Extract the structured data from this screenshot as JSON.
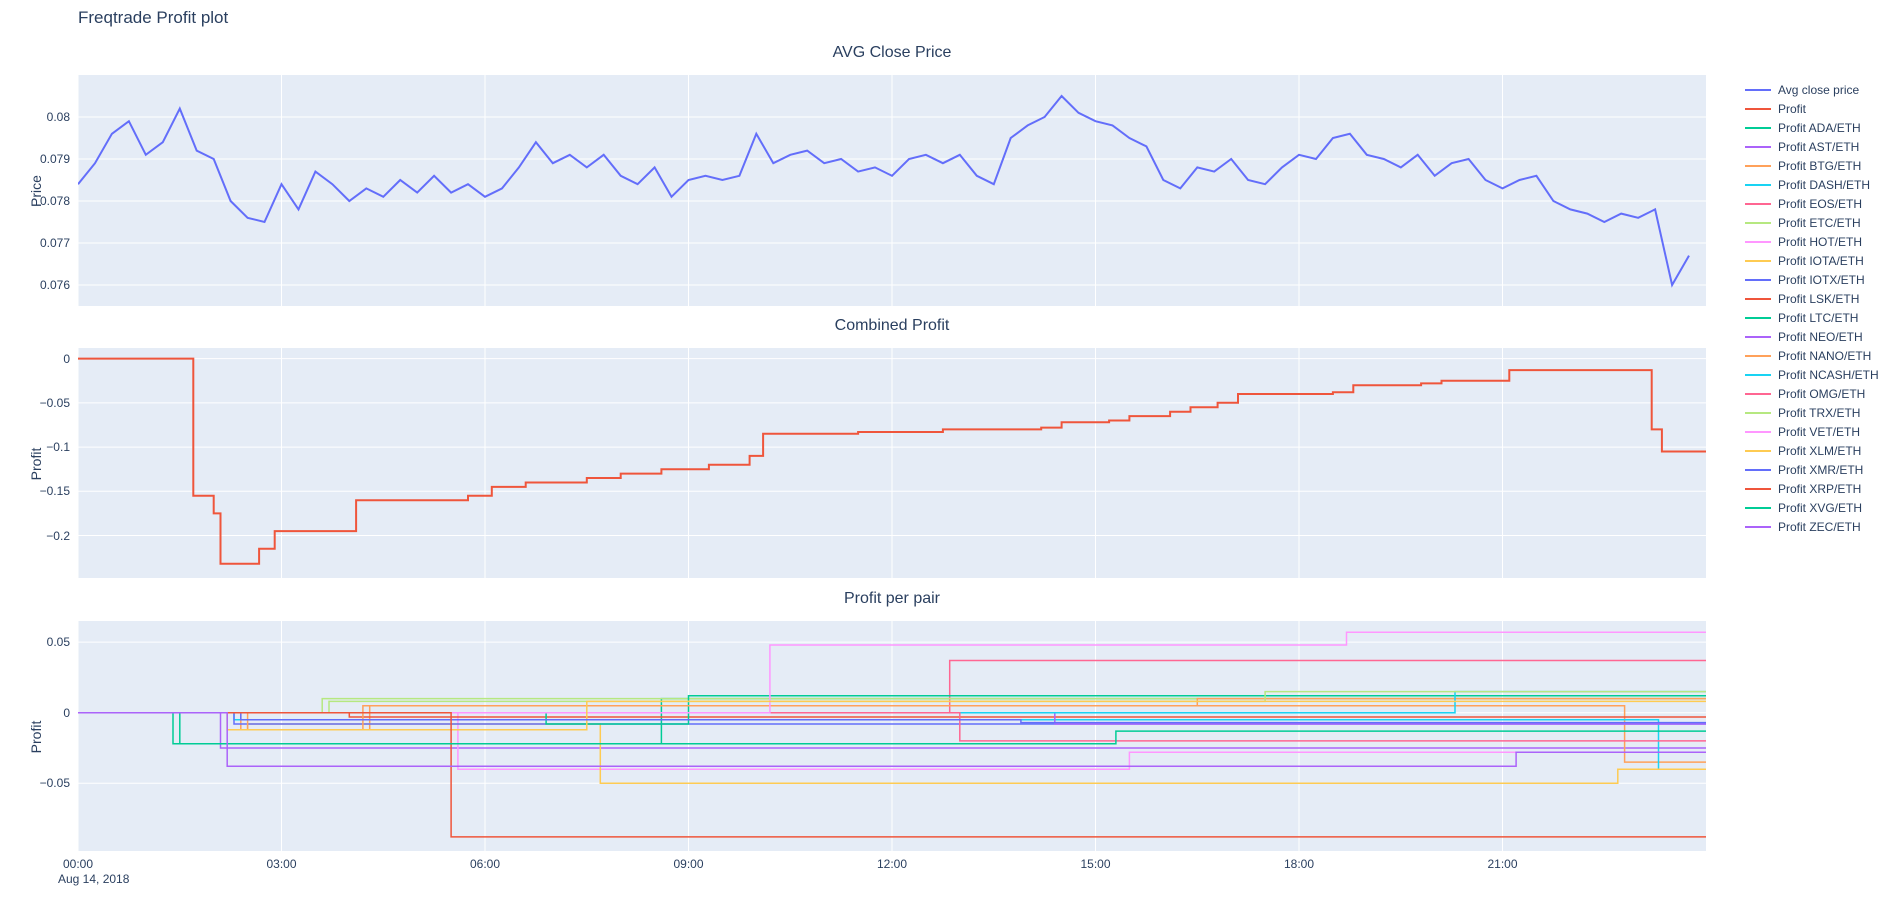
{
  "page": {
    "title": "Freqtrade Profit plot"
  },
  "x_axis": {
    "tick_hours": [
      0,
      3,
      6,
      9,
      12,
      15,
      18,
      21
    ],
    "tick_labels": [
      "00:00",
      "03:00",
      "06:00",
      "09:00",
      "12:00",
      "15:00",
      "18:00",
      "21:00"
    ],
    "date_label": "Aug 14, 2018"
  },
  "colors": {
    "plot_background": "#E5ECF6",
    "grid": "#ffffff",
    "text": "#2a3f5f"
  },
  "legend": {
    "items": [
      {
        "label": "Avg close price",
        "color": "#636efa"
      },
      {
        "label": "Profit",
        "color": "#EF553B"
      },
      {
        "label": "Profit ADA/ETH",
        "color": "#00cc96"
      },
      {
        "label": "Profit AST/ETH",
        "color": "#ab63fa"
      },
      {
        "label": "Profit BTG/ETH",
        "color": "#FFA15A"
      },
      {
        "label": "Profit DASH/ETH",
        "color": "#19d3f3"
      },
      {
        "label": "Profit EOS/ETH",
        "color": "#FF6692"
      },
      {
        "label": "Profit ETC/ETH",
        "color": "#B6E880"
      },
      {
        "label": "Profit HOT/ETH",
        "color": "#FF97FF"
      },
      {
        "label": "Profit IOTA/ETH",
        "color": "#FECB52"
      },
      {
        "label": "Profit IOTX/ETH",
        "color": "#636efa"
      },
      {
        "label": "Profit LSK/ETH",
        "color": "#EF553B"
      },
      {
        "label": "Profit LTC/ETH",
        "color": "#00cc96"
      },
      {
        "label": "Profit NEO/ETH",
        "color": "#ab63fa"
      },
      {
        "label": "Profit NANO/ETH",
        "color": "#FFA15A"
      },
      {
        "label": "Profit NCASH/ETH",
        "color": "#19d3f3"
      },
      {
        "label": "Profit OMG/ETH",
        "color": "#FF6692"
      },
      {
        "label": "Profit TRX/ETH",
        "color": "#B6E880"
      },
      {
        "label": "Profit VET/ETH",
        "color": "#FF97FF"
      },
      {
        "label": "Profit XLM/ETH",
        "color": "#FECB52"
      },
      {
        "label": "Profit XMR/ETH",
        "color": "#636efa"
      },
      {
        "label": "Profit XRP/ETH",
        "color": "#EF553B"
      },
      {
        "label": "Profit XVG/ETH",
        "color": "#00cc96"
      },
      {
        "label": "Profit ZEC/ETH",
        "color": "#ab63fa"
      }
    ]
  },
  "chart_data": [
    {
      "type": "line",
      "title": "AVG Close Price",
      "ylabel": "Price",
      "xlim": [
        0,
        24
      ],
      "ylim": [
        0.0755,
        0.081
      ],
      "yticks": [
        0.076,
        0.077,
        0.078,
        0.079,
        0.08
      ],
      "ytick_labels": [
        "0.076",
        "0.077",
        "0.078",
        "0.079",
        "0.08"
      ],
      "series": [
        {
          "name": "Avg close price",
          "color": "#636efa",
          "shape": "linear",
          "width": 2,
          "x_start": 0,
          "x_step": 0.25,
          "y": [
            0.0784,
            0.0789,
            0.0796,
            0.0799,
            0.0791,
            0.0794,
            0.0802,
            0.0792,
            0.079,
            0.078,
            0.0776,
            0.0775,
            0.0784,
            0.0778,
            0.0787,
            0.0784,
            0.078,
            0.0783,
            0.0781,
            0.0785,
            0.0782,
            0.0786,
            0.0782,
            0.0784,
            0.0781,
            0.0783,
            0.0788,
            0.0794,
            0.0789,
            0.0791,
            0.0788,
            0.0791,
            0.0786,
            0.0784,
            0.0788,
            0.0781,
            0.0785,
            0.0786,
            0.0785,
            0.0786,
            0.0796,
            0.0789,
            0.0791,
            0.0792,
            0.0789,
            0.079,
            0.0787,
            0.0788,
            0.0786,
            0.079,
            0.0791,
            0.0789,
            0.0791,
            0.0786,
            0.0784,
            0.0795,
            0.0798,
            0.08,
            0.0805,
            0.0801,
            0.0799,
            0.0798,
            0.0795,
            0.0793,
            0.0785,
            0.0783,
            0.0788,
            0.0787,
            0.079,
            0.0785,
            0.0784,
            0.0788,
            0.0791,
            0.079,
            0.0795,
            0.0796,
            0.0791,
            0.079,
            0.0788,
            0.0791,
            0.0786,
            0.0789,
            0.079,
            0.0785,
            0.0783,
            0.0785,
            0.0786,
            0.078,
            0.0778,
            0.0777,
            0.0775,
            0.0777,
            0.0776,
            0.0778,
            0.076,
            0.0767
          ]
        }
      ]
    },
    {
      "type": "line",
      "title": "Combined Profit",
      "ylabel": "Profit",
      "xlim": [
        0,
        24
      ],
      "ylim": [
        -0.248,
        0.012
      ],
      "yticks": [
        0,
        -0.05,
        -0.1,
        -0.15,
        -0.2
      ],
      "ytick_labels": [
        "0",
        "−0.05",
        "−0.1",
        "−0.15",
        "−0.2"
      ],
      "series": [
        {
          "name": "Profit",
          "color": "#EF553B",
          "shape": "hv",
          "width": 2,
          "x": [
            0,
            1.7,
            2.0,
            2.1,
            2.5,
            2.67,
            2.9,
            3.9,
            4.1,
            5.75,
            6.1,
            6.6,
            7.5,
            8.0,
            8.6,
            9.3,
            9.9,
            10.1,
            11.5,
            12.75,
            14.2,
            14.5,
            15.2,
            15.5,
            16.1,
            16.4,
            16.8,
            17.1,
            18.5,
            18.8,
            19.8,
            20.1,
            21.1,
            23.2,
            23.35,
            24
          ],
          "y": [
            0,
            -0.155,
            -0.175,
            -0.232,
            -0.232,
            -0.215,
            -0.195,
            -0.195,
            -0.16,
            -0.155,
            -0.145,
            -0.14,
            -0.135,
            -0.13,
            -0.125,
            -0.12,
            -0.11,
            -0.085,
            -0.083,
            -0.08,
            -0.078,
            -0.072,
            -0.07,
            -0.065,
            -0.06,
            -0.055,
            -0.05,
            -0.04,
            -0.038,
            -0.03,
            -0.028,
            -0.025,
            -0.013,
            -0.08,
            -0.105,
            -0.105
          ]
        }
      ]
    },
    {
      "type": "line",
      "title": "Profit per pair",
      "ylabel": "Profit",
      "xlim": [
        0,
        24
      ],
      "ylim": [
        -0.098,
        0.065
      ],
      "yticks": [
        0.05,
        0,
        -0.05
      ],
      "ytick_labels": [
        "0.05",
        "0",
        "−0.05"
      ],
      "series": [
        {
          "name": "Profit ADA/ETH",
          "color": "#00cc96",
          "shape": "hv",
          "width": 1.5,
          "x": [
            0,
            1.4,
            8.6,
            24
          ],
          "y": [
            0,
            -0.022,
            0.01,
            0.01
          ]
        },
        {
          "name": "Profit AST/ETH",
          "color": "#ab63fa",
          "shape": "hv",
          "width": 1.5,
          "x": [
            0,
            2.1,
            24
          ],
          "y": [
            0,
            -0.025,
            -0.025
          ]
        },
        {
          "name": "Profit BTG/ETH",
          "color": "#FFA15A",
          "shape": "hv",
          "width": 1.5,
          "x": [
            0,
            2.4,
            4.3,
            22.8,
            24
          ],
          "y": [
            0,
            -0.012,
            0.005,
            -0.035,
            -0.035
          ]
        },
        {
          "name": "Profit DASH/ETH",
          "color": "#19d3f3",
          "shape": "hv",
          "width": 1.5,
          "x": [
            0,
            2.3,
            23.3,
            24
          ],
          "y": [
            0,
            -0.005,
            -0.04,
            -0.04
          ]
        },
        {
          "name": "Profit EOS/ETH",
          "color": "#FF6692",
          "shape": "hv",
          "width": 1.5,
          "x": [
            0,
            12.85,
            24
          ],
          "y": [
            0,
            0.037,
            0.037
          ]
        },
        {
          "name": "Profit ETC/ETH",
          "color": "#B6E880",
          "shape": "hv",
          "width": 1.5,
          "x": [
            0,
            3.6,
            24
          ],
          "y": [
            0,
            0.01,
            0.01
          ]
        },
        {
          "name": "Profit HOT/ETH",
          "color": "#FF97FF",
          "shape": "hv",
          "width": 1.5,
          "x": [
            0,
            5.6,
            15.5,
            24
          ],
          "y": [
            0,
            -0.04,
            -0.028,
            -0.028
          ]
        },
        {
          "name": "Profit IOTA/ETH",
          "color": "#FECB52",
          "shape": "hv",
          "width": 1.5,
          "x": [
            0,
            2.2,
            2.5,
            7.7,
            22.7,
            24
          ],
          "y": [
            0,
            -0.012,
            -0.008,
            -0.05,
            -0.04,
            -0.04
          ]
        },
        {
          "name": "Profit IOTX/ETH",
          "color": "#636efa",
          "shape": "hv",
          "width": 1.5,
          "x": [
            0,
            2.3,
            24
          ],
          "y": [
            0,
            -0.008,
            -0.008
          ]
        },
        {
          "name": "Profit LSK/ETH",
          "color": "#EF553B",
          "shape": "hv",
          "width": 1.5,
          "x": [
            0,
            4.0,
            24
          ],
          "y": [
            0,
            -0.003,
            -0.003
          ]
        },
        {
          "name": "Profit LTC/ETH",
          "color": "#00cc96",
          "shape": "hv",
          "width": 1.5,
          "x": [
            0,
            6.9,
            9.0,
            24
          ],
          "y": [
            0,
            -0.008,
            0.012,
            0.012
          ]
        },
        {
          "name": "Profit NEO/ETH",
          "color": "#ab63fa",
          "shape": "hv",
          "width": 1.5,
          "x": [
            0,
            14.4,
            24
          ],
          "y": [
            0,
            -0.008,
            -0.008
          ]
        },
        {
          "name": "Profit NANO/ETH",
          "color": "#FFA15A",
          "shape": "hv",
          "width": 1.5,
          "x": [
            0,
            2.5,
            4.2,
            16.5,
            24
          ],
          "y": [
            0,
            -0.012,
            0.005,
            0.01,
            0.01
          ]
        },
        {
          "name": "Profit NCASH/ETH",
          "color": "#19d3f3",
          "shape": "hv",
          "width": 1.5,
          "x": [
            0,
            20.3,
            24
          ],
          "y": [
            0,
            0.015,
            0.015
          ]
        },
        {
          "name": "Profit OMG/ETH",
          "color": "#FF6692",
          "shape": "hv",
          "width": 1.5,
          "x": [
            0,
            13.0,
            24
          ],
          "y": [
            0,
            -0.02,
            -0.02
          ]
        },
        {
          "name": "Profit TRX/ETH",
          "color": "#B6E880",
          "shape": "hv",
          "width": 1.5,
          "x": [
            0,
            3.7,
            17.5,
            24
          ],
          "y": [
            0,
            0.008,
            0.015,
            0.015
          ]
        },
        {
          "name": "Profit VET/ETH",
          "color": "#FF97FF",
          "shape": "hv",
          "width": 1.5,
          "x": [
            0,
            10.2,
            18.7,
            24
          ],
          "y": [
            0,
            0.048,
            0.057,
            0.057
          ]
        },
        {
          "name": "Profit XLM/ETH",
          "color": "#FECB52",
          "shape": "hv",
          "width": 1.5,
          "x": [
            0,
            2.2,
            7.5,
            24
          ],
          "y": [
            0,
            -0.012,
            0.008,
            0.008
          ]
        },
        {
          "name": "Profit XMR/ETH",
          "color": "#636efa",
          "shape": "hv",
          "width": 1.5,
          "x": [
            0,
            2.4,
            13.9,
            24
          ],
          "y": [
            0,
            -0.005,
            -0.007,
            -0.007
          ]
        },
        {
          "name": "Profit XRP/ETH",
          "color": "#EF553B",
          "shape": "hv",
          "width": 1.5,
          "x": [
            0,
            5.5,
            24
          ],
          "y": [
            0,
            -0.088,
            -0.088
          ]
        },
        {
          "name": "Profit XVG/ETH",
          "color": "#00cc96",
          "shape": "hv",
          "width": 1.5,
          "x": [
            0,
            1.5,
            15.3,
            24
          ],
          "y": [
            0,
            -0.022,
            -0.013,
            -0.013
          ]
        },
        {
          "name": "Profit ZEC/ETH",
          "color": "#ab63fa",
          "shape": "hv",
          "width": 1.5,
          "x": [
            0,
            2.2,
            21.2,
            24
          ],
          "y": [
            0,
            -0.038,
            -0.028,
            -0.028
          ]
        }
      ]
    }
  ]
}
